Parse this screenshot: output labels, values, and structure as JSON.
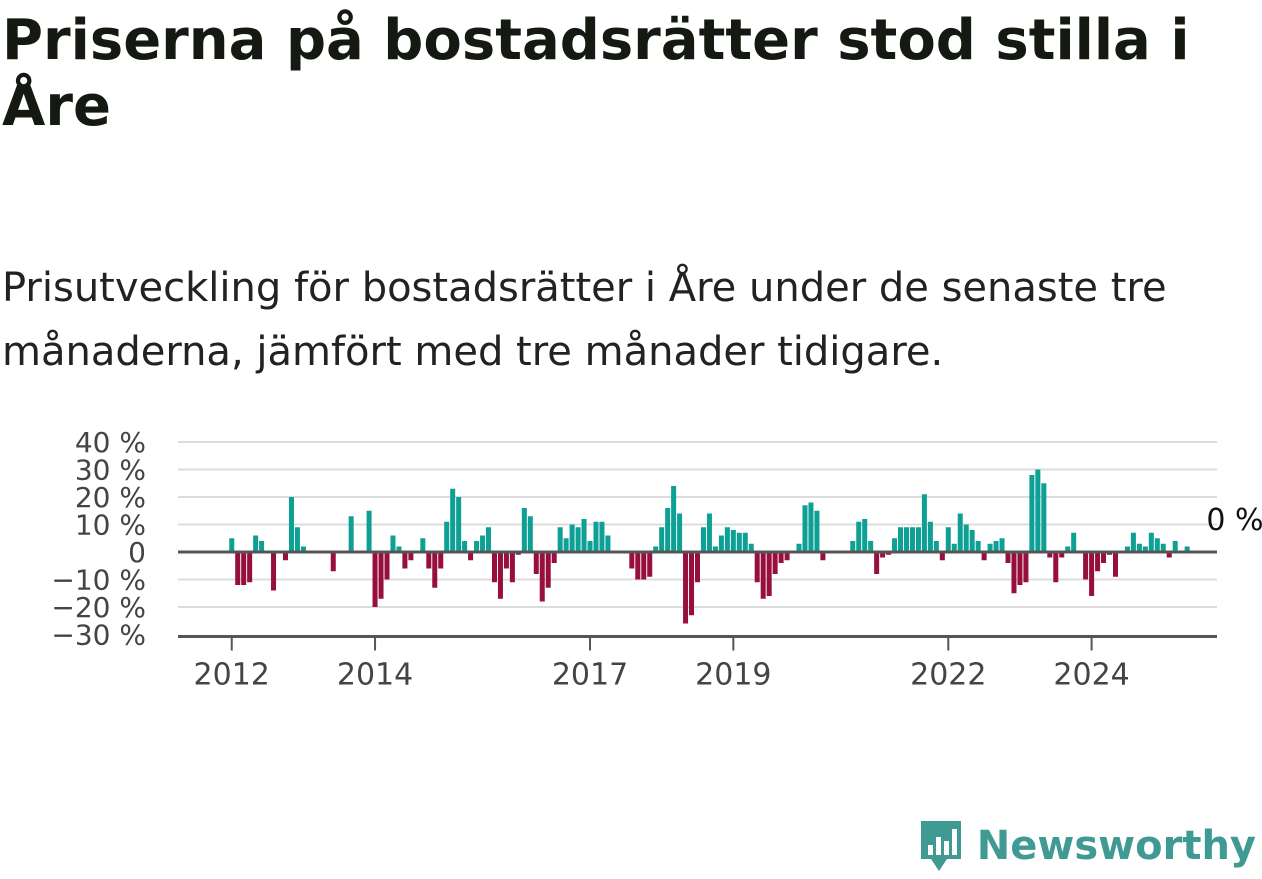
{
  "title": "Priserna på bostadsrätter stod stilla i Åre",
  "subtitle": "Prisutveckling för bostadsrätter i Åre under de senaste tre månaderna, jämfört med tre månader tidigare.",
  "brand": {
    "name": "Newsworthy",
    "icon": "newsworthy-logo-icon",
    "color": "#3f9a94"
  },
  "chart_data": {
    "type": "bar",
    "title": "",
    "xlabel": "",
    "ylabel": "",
    "ylim": [
      -30,
      40
    ],
    "yticks": [
      40,
      30,
      20,
      10,
      0,
      -10,
      -20,
      -30
    ],
    "ytick_labels": [
      "40 %",
      "30 %",
      "20 %",
      "10 %",
      "0",
      "−10 %",
      "−20 %",
      "−30 %"
    ],
    "x_range": [
      "2011-04",
      "2025-10"
    ],
    "xtick_labels": [
      {
        "label": "2012",
        "month": "2012-01"
      },
      {
        "label": "2014",
        "month": "2014-01"
      },
      {
        "label": "2017",
        "month": "2017-01"
      },
      {
        "label": "2019",
        "month": "2019-01"
      },
      {
        "label": "2022",
        "month": "2022-01"
      },
      {
        "label": "2024",
        "month": "2024-01"
      }
    ],
    "grid": true,
    "legend": "none",
    "colors": {
      "positive": "#0fa095",
      "negative": "#970f3f",
      "axis": "#555555",
      "grid": "#dcdcdc"
    },
    "start_month": "2012-01",
    "unit": "%",
    "values": [
      5,
      -12,
      -12,
      -11,
      6,
      4,
      0,
      -14,
      0,
      -3,
      20,
      9,
      2,
      0,
      0,
      0,
      0,
      -7,
      0,
      0,
      13,
      0,
      0,
      15,
      -20,
      -17,
      -10,
      6,
      2,
      -6,
      -3,
      0,
      5,
      -6,
      -13,
      -6,
      11,
      23,
      20,
      4,
      -3,
      4,
      6,
      9,
      -11,
      -17,
      -6,
      -11,
      -1,
      16,
      13,
      -8,
      -18,
      -13,
      -4,
      9,
      5,
      10,
      9,
      12,
      4,
      11,
      11,
      6,
      0,
      0,
      0,
      -6,
      -10,
      -10,
      -9,
      2,
      9,
      16,
      24,
      14,
      -26,
      -23,
      -11,
      9,
      14,
      2,
      6,
      9,
      8,
      7,
      7,
      3,
      -11,
      -17,
      -16,
      -8,
      -4,
      -3,
      0,
      3,
      17,
      18,
      15,
      -3,
      0,
      0,
      0,
      0,
      4,
      11,
      12,
      4,
      -8,
      -2,
      -1,
      5,
      9,
      9,
      9,
      9,
      21,
      11,
      4,
      -3,
      9,
      3,
      14,
      10,
      8,
      4,
      -3,
      3,
      4,
      5,
      -4,
      -15,
      -12,
      -11,
      28,
      30,
      25,
      -2,
      -11,
      -2,
      2,
      7,
      0,
      -10,
      -16,
      -7,
      -4,
      -1,
      -9,
      0,
      2,
      7,
      3,
      2,
      7,
      5,
      3,
      -2,
      4,
      0,
      2,
      0,
      0,
      0,
      0,
      0,
      0,
      0
    ],
    "last_value_label": "0 %"
  }
}
